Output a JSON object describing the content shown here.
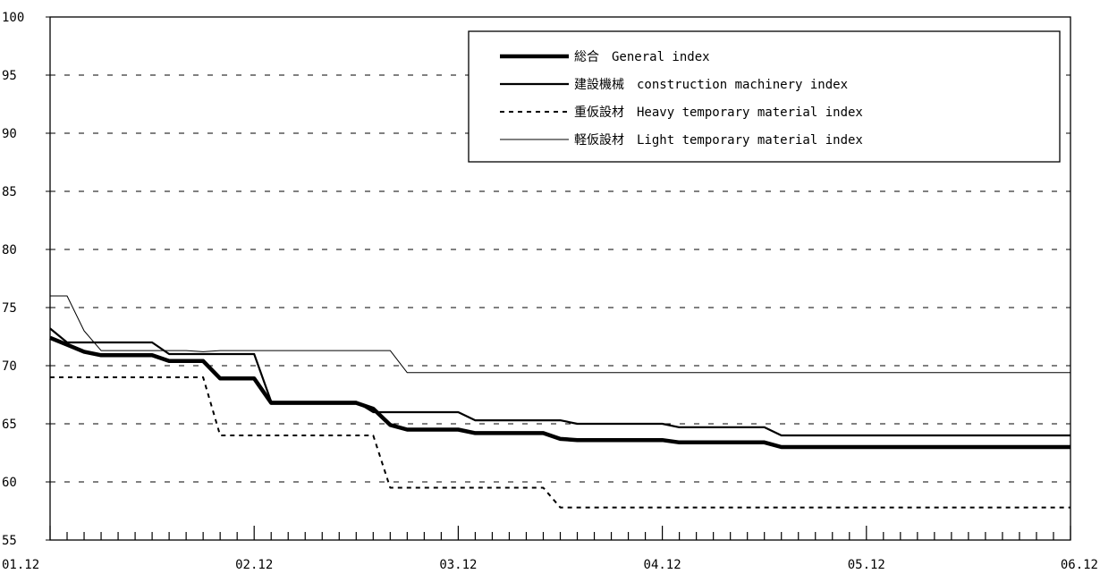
{
  "chart_data": {
    "type": "line",
    "title": "",
    "xlabel": "",
    "ylabel": "",
    "ylim": [
      55,
      100
    ],
    "yticks": [
      55,
      60,
      65,
      70,
      75,
      80,
      85,
      90,
      95,
      100
    ],
    "xlim": [
      0,
      60
    ],
    "xtick_labels": [
      {
        "x": 0,
        "label": "01.12"
      },
      {
        "x": 12,
        "label": "02.12"
      },
      {
        "x": 24,
        "label": "03.12"
      },
      {
        "x": 36,
        "label": "04.12"
      },
      {
        "x": 48,
        "label": "05.12"
      },
      {
        "x": 60,
        "label": "06.12"
      }
    ],
    "grid": "horizontal dashed",
    "legend_position": "top-right",
    "series": [
      {
        "name": "総合　General index",
        "style": "thick",
        "color": "#000000",
        "points": [
          [
            0,
            72.4
          ],
          [
            1,
            71.8
          ],
          [
            2,
            71.2
          ],
          [
            3,
            70.9
          ],
          [
            4,
            70.9
          ],
          [
            5,
            70.9
          ],
          [
            6,
            70.9
          ],
          [
            7,
            70.4
          ],
          [
            8,
            70.4
          ],
          [
            9,
            70.4
          ],
          [
            10,
            68.9
          ],
          [
            11,
            68.9
          ],
          [
            12,
            68.9
          ],
          [
            13,
            66.8
          ],
          [
            14,
            66.8
          ],
          [
            15,
            66.8
          ],
          [
            16,
            66.8
          ],
          [
            17,
            66.8
          ],
          [
            18,
            66.8
          ],
          [
            19,
            66.3
          ],
          [
            20,
            64.9
          ],
          [
            21,
            64.5
          ],
          [
            22,
            64.5
          ],
          [
            23,
            64.5
          ],
          [
            24,
            64.5
          ],
          [
            25,
            64.2
          ],
          [
            26,
            64.2
          ],
          [
            27,
            64.2
          ],
          [
            28,
            64.2
          ],
          [
            29,
            64.2
          ],
          [
            30,
            63.7
          ],
          [
            31,
            63.6
          ],
          [
            32,
            63.6
          ],
          [
            33,
            63.6
          ],
          [
            34,
            63.6
          ],
          [
            35,
            63.6
          ],
          [
            36,
            63.6
          ],
          [
            37,
            63.4
          ],
          [
            38,
            63.4
          ],
          [
            39,
            63.4
          ],
          [
            40,
            63.4
          ],
          [
            41,
            63.4
          ],
          [
            42,
            63.4
          ],
          [
            43,
            63.0
          ],
          [
            44,
            63.0
          ],
          [
            45,
            63.0
          ],
          [
            46,
            63.0
          ],
          [
            47,
            63.0
          ],
          [
            48,
            63.0
          ],
          [
            49,
            63.0
          ],
          [
            50,
            63.0
          ],
          [
            51,
            63.0
          ],
          [
            52,
            63.0
          ],
          [
            53,
            63.0
          ],
          [
            54,
            63.0
          ],
          [
            55,
            63.0
          ],
          [
            56,
            63.0
          ],
          [
            57,
            63.0
          ],
          [
            58,
            63.0
          ],
          [
            59,
            63.0
          ],
          [
            60,
            63.0
          ]
        ]
      },
      {
        "name": "建設機械　construction machinery index",
        "style": "medium",
        "color": "#000000",
        "points": [
          [
            0,
            73.2
          ],
          [
            1,
            72.0
          ],
          [
            2,
            72.0
          ],
          [
            3,
            72.0
          ],
          [
            4,
            72.0
          ],
          [
            5,
            72.0
          ],
          [
            6,
            72.0
          ],
          [
            7,
            71.0
          ],
          [
            8,
            71.0
          ],
          [
            9,
            71.0
          ],
          [
            10,
            71.0
          ],
          [
            11,
            71.0
          ],
          [
            12,
            71.0
          ],
          [
            13,
            66.9
          ],
          [
            14,
            66.9
          ],
          [
            15,
            66.9
          ],
          [
            16,
            66.9
          ],
          [
            17,
            66.9
          ],
          [
            18,
            66.9
          ],
          [
            19,
            66.0
          ],
          [
            20,
            66.0
          ],
          [
            21,
            66.0
          ],
          [
            22,
            66.0
          ],
          [
            23,
            66.0
          ],
          [
            24,
            66.0
          ],
          [
            25,
            65.3
          ],
          [
            26,
            65.3
          ],
          [
            27,
            65.3
          ],
          [
            28,
            65.3
          ],
          [
            29,
            65.3
          ],
          [
            30,
            65.3
          ],
          [
            31,
            65.0
          ],
          [
            32,
            65.0
          ],
          [
            33,
            65.0
          ],
          [
            34,
            65.0
          ],
          [
            35,
            65.0
          ],
          [
            36,
            65.0
          ],
          [
            37,
            64.7
          ],
          [
            38,
            64.7
          ],
          [
            39,
            64.7
          ],
          [
            40,
            64.7
          ],
          [
            41,
            64.7
          ],
          [
            42,
            64.7
          ],
          [
            43,
            64.0
          ],
          [
            44,
            64.0
          ],
          [
            45,
            64.0
          ],
          [
            46,
            64.0
          ],
          [
            47,
            64.0
          ],
          [
            48,
            64.0
          ],
          [
            49,
            64.0
          ],
          [
            50,
            64.0
          ],
          [
            51,
            64.0
          ],
          [
            52,
            64.0
          ],
          [
            53,
            64.0
          ],
          [
            54,
            64.0
          ],
          [
            55,
            64.0
          ],
          [
            56,
            64.0
          ],
          [
            57,
            64.0
          ],
          [
            58,
            64.0
          ],
          [
            59,
            64.0
          ],
          [
            60,
            64.0
          ]
        ]
      },
      {
        "name": "重仮設材　Heavy temporary material index",
        "style": "dashed",
        "color": "#000000",
        "points": [
          [
            0,
            69.0
          ],
          [
            1,
            69.0
          ],
          [
            2,
            69.0
          ],
          [
            3,
            69.0
          ],
          [
            4,
            69.0
          ],
          [
            5,
            69.0
          ],
          [
            6,
            69.0
          ],
          [
            7,
            69.0
          ],
          [
            8,
            69.0
          ],
          [
            9,
            69.0
          ],
          [
            10,
            64.0
          ],
          [
            11,
            64.0
          ],
          [
            12,
            64.0
          ],
          [
            13,
            64.0
          ],
          [
            14,
            64.0
          ],
          [
            15,
            64.0
          ],
          [
            16,
            64.0
          ],
          [
            17,
            64.0
          ],
          [
            18,
            64.0
          ],
          [
            19,
            64.0
          ],
          [
            20,
            59.5
          ],
          [
            21,
            59.5
          ],
          [
            22,
            59.5
          ],
          [
            23,
            59.5
          ],
          [
            24,
            59.5
          ],
          [
            25,
            59.5
          ],
          [
            26,
            59.5
          ],
          [
            27,
            59.5
          ],
          [
            28,
            59.5
          ],
          [
            29,
            59.5
          ],
          [
            30,
            57.8
          ],
          [
            31,
            57.8
          ],
          [
            32,
            57.8
          ],
          [
            33,
            57.8
          ],
          [
            34,
            57.8
          ],
          [
            35,
            57.8
          ],
          [
            36,
            57.8
          ],
          [
            37,
            57.8
          ],
          [
            38,
            57.8
          ],
          [
            39,
            57.8
          ],
          [
            40,
            57.8
          ],
          [
            41,
            57.8
          ],
          [
            42,
            57.8
          ],
          [
            43,
            57.8
          ],
          [
            44,
            57.8
          ],
          [
            45,
            57.8
          ],
          [
            46,
            57.8
          ],
          [
            47,
            57.8
          ],
          [
            48,
            57.8
          ],
          [
            49,
            57.8
          ],
          [
            50,
            57.8
          ],
          [
            51,
            57.8
          ],
          [
            52,
            57.8
          ],
          [
            53,
            57.8
          ],
          [
            54,
            57.8
          ],
          [
            55,
            57.8
          ],
          [
            56,
            57.8
          ],
          [
            57,
            57.8
          ],
          [
            58,
            57.8
          ],
          [
            59,
            57.8
          ],
          [
            60,
            57.8
          ]
        ]
      },
      {
        "name": "軽仮設材　Light temporary material index",
        "style": "thin",
        "color": "#000000",
        "points": [
          [
            0,
            76.0
          ],
          [
            1,
            76.0
          ],
          [
            2,
            73.0
          ],
          [
            3,
            71.3
          ],
          [
            4,
            71.3
          ],
          [
            5,
            71.3
          ],
          [
            6,
            71.3
          ],
          [
            7,
            71.3
          ],
          [
            8,
            71.3
          ],
          [
            9,
            71.2
          ],
          [
            10,
            71.3
          ],
          [
            11,
            71.3
          ],
          [
            12,
            71.3
          ],
          [
            13,
            71.3
          ],
          [
            14,
            71.3
          ],
          [
            15,
            71.3
          ],
          [
            16,
            71.3
          ],
          [
            17,
            71.3
          ],
          [
            18,
            71.3
          ],
          [
            19,
            71.3
          ],
          [
            20,
            71.3
          ],
          [
            21,
            69.4
          ],
          [
            22,
            69.4
          ],
          [
            23,
            69.4
          ],
          [
            24,
            69.4
          ],
          [
            25,
            69.4
          ],
          [
            26,
            69.4
          ],
          [
            27,
            69.4
          ],
          [
            28,
            69.4
          ],
          [
            29,
            69.4
          ],
          [
            30,
            69.4
          ],
          [
            31,
            69.4
          ],
          [
            32,
            69.4
          ],
          [
            33,
            69.4
          ],
          [
            34,
            69.4
          ],
          [
            35,
            69.4
          ],
          [
            36,
            69.4
          ],
          [
            37,
            69.4
          ],
          [
            38,
            69.4
          ],
          [
            39,
            69.4
          ],
          [
            40,
            69.4
          ],
          [
            41,
            69.4
          ],
          [
            42,
            69.4
          ],
          [
            43,
            69.4
          ],
          [
            44,
            69.4
          ],
          [
            45,
            69.4
          ],
          [
            46,
            69.4
          ],
          [
            47,
            69.4
          ],
          [
            48,
            69.4
          ],
          [
            49,
            69.4
          ],
          [
            50,
            69.4
          ],
          [
            51,
            69.4
          ],
          [
            52,
            69.4
          ],
          [
            53,
            69.4
          ],
          [
            54,
            69.4
          ],
          [
            55,
            69.4
          ],
          [
            56,
            69.4
          ],
          [
            57,
            69.4
          ],
          [
            58,
            69.4
          ],
          [
            59,
            69.4
          ],
          [
            60,
            69.4
          ]
        ]
      }
    ]
  }
}
